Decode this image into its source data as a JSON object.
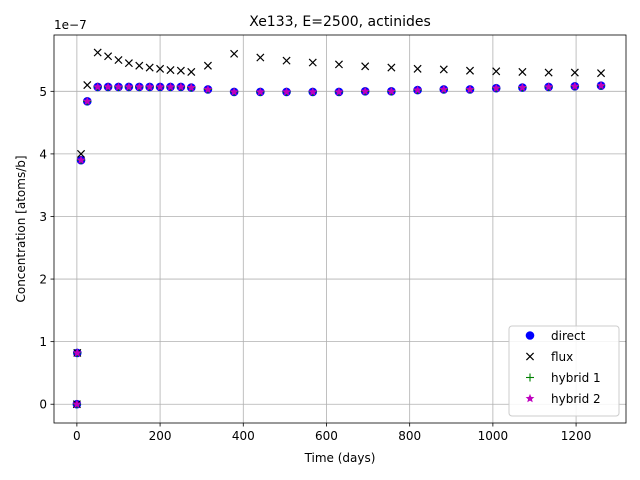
{
  "chart_data": {
    "type": "scatter",
    "title": "Xe133, E=2500, actinides",
    "xlabel": "Time (days)",
    "ylabel": "Concentration [atoms/b]",
    "y_offset_label": "1e−7",
    "y_scale": 1e-07,
    "xlim": [
      -55,
      1320
    ],
    "ylim": [
      -0.3,
      5.9
    ],
    "xticks": [
      0,
      200,
      400,
      600,
      800,
      1000,
      1200
    ],
    "yticks": [
      0,
      1,
      2,
      3,
      4,
      5
    ],
    "grid": true,
    "legend_position": "lower-right",
    "x": [
      0,
      1,
      10,
      25,
      50,
      75,
      100,
      125,
      150,
      175,
      200,
      225,
      250,
      275,
      315,
      378,
      441,
      504,
      567,
      630,
      693,
      756,
      819,
      882,
      945,
      1008,
      1071,
      1134,
      1197,
      1260
    ],
    "series": [
      {
        "name": "direct",
        "marker": "circle",
        "color": "#0000ff",
        "values": [
          0.0,
          0.82,
          3.9,
          4.84,
          5.07,
          5.07,
          5.07,
          5.07,
          5.07,
          5.07,
          5.07,
          5.07,
          5.07,
          5.06,
          5.03,
          4.99,
          4.99,
          4.99,
          4.99,
          4.99,
          5.0,
          5.0,
          5.02,
          5.03,
          5.03,
          5.05,
          5.06,
          5.07,
          5.08,
          5.09
        ]
      },
      {
        "name": "flux",
        "marker": "x",
        "color": "#000000",
        "values": [
          0.0,
          0.82,
          4.0,
          5.1,
          5.62,
          5.56,
          5.5,
          5.45,
          5.41,
          5.38,
          5.36,
          5.34,
          5.33,
          5.31,
          5.41,
          5.6,
          5.54,
          5.49,
          5.46,
          5.43,
          5.4,
          5.38,
          5.36,
          5.35,
          5.33,
          5.32,
          5.31,
          5.3,
          5.3,
          5.29
        ]
      },
      {
        "name": "hybrid 1",
        "marker": "plus",
        "color": "#008000",
        "values": [
          0.0,
          0.82,
          3.9,
          4.84,
          5.07,
          5.07,
          5.07,
          5.07,
          5.07,
          5.07,
          5.07,
          5.07,
          5.07,
          5.06,
          5.03,
          4.99,
          4.99,
          4.99,
          4.99,
          4.99,
          5.0,
          5.0,
          5.02,
          5.03,
          5.03,
          5.05,
          5.06,
          5.07,
          5.08,
          5.09
        ]
      },
      {
        "name": "hybrid 2",
        "marker": "star",
        "color": "#bf00bf",
        "values": [
          0.0,
          0.82,
          3.9,
          4.84,
          5.07,
          5.07,
          5.07,
          5.07,
          5.07,
          5.07,
          5.07,
          5.07,
          5.07,
          5.06,
          5.03,
          4.99,
          4.99,
          4.99,
          4.99,
          4.99,
          5.0,
          5.0,
          5.02,
          5.03,
          5.03,
          5.05,
          5.06,
          5.07,
          5.08,
          5.09
        ]
      }
    ]
  }
}
